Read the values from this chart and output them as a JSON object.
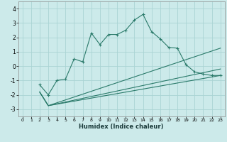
{
  "xlabel": "Humidex (Indice chaleur)",
  "bg_color": "#cceaea",
  "grid_color": "#aad4d4",
  "line_color": "#2a7a6a",
  "xlim": [
    -0.5,
    23.5
  ],
  "ylim": [
    -3.5,
    4.5
  ],
  "xticks": [
    0,
    1,
    2,
    3,
    4,
    5,
    6,
    7,
    8,
    9,
    10,
    11,
    12,
    13,
    14,
    15,
    16,
    17,
    18,
    19,
    20,
    21,
    22,
    23
  ],
  "yticks": [
    -3,
    -2,
    -1,
    0,
    1,
    2,
    3,
    4
  ],
  "line1_x": [
    2,
    3,
    4,
    5,
    6,
    7,
    8,
    9,
    10,
    11,
    12,
    13,
    14,
    15,
    16,
    17,
    18,
    19,
    20,
    21,
    22,
    23
  ],
  "line1_y": [
    -1.3,
    -2.0,
    -1.0,
    -0.9,
    0.5,
    0.3,
    2.3,
    1.5,
    2.2,
    2.2,
    2.5,
    3.2,
    3.6,
    2.4,
    1.9,
    1.3,
    1.25,
    0.1,
    -0.4,
    -0.55,
    -0.65,
    -0.65
  ],
  "line2_x": [
    2,
    3,
    23
  ],
  "line2_y": [
    -1.8,
    -2.75,
    -0.65
  ],
  "line3_x": [
    2,
    3,
    23
  ],
  "line3_y": [
    -1.8,
    -2.75,
    -0.2
  ],
  "line4_x": [
    2,
    3,
    23
  ],
  "line4_y": [
    -1.8,
    -2.75,
    1.25
  ]
}
